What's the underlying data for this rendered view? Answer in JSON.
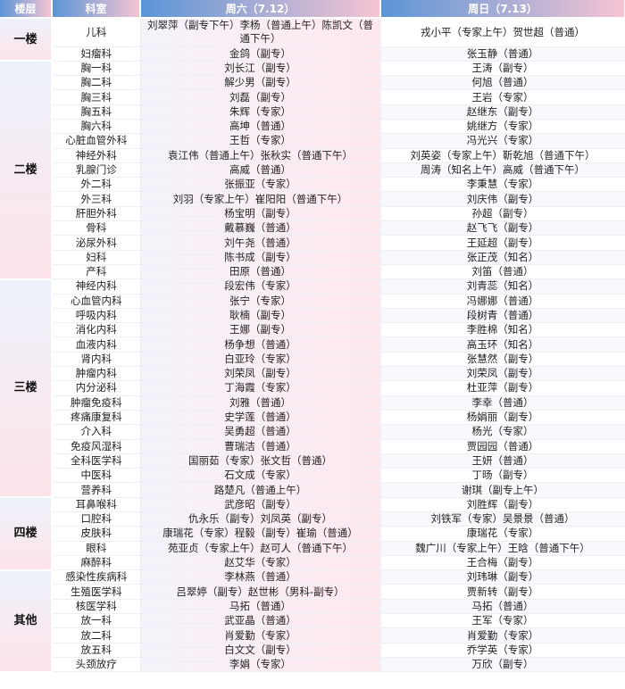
{
  "header": {
    "floor": "楼层",
    "dept": "科室",
    "sat": "周六（7.12）",
    "sun": "周日（7.13）"
  },
  "floors": [
    {
      "name": "一楼",
      "rows": [
        [
          "儿科",
          "刘翠萍（副专下午）李杨（普通上午）陈凯文（普通下午）",
          "戎小平（专家上午）贺世超（普通）"
        ],
        [
          "妇瘤科",
          "金鸽（副专）",
          "张玉静（普通）"
        ]
      ]
    },
    {
      "name": "二楼",
      "rows": [
        [
          "胸一科",
          "刘长江（副专）",
          "王涛（副专）"
        ],
        [
          "胸二科",
          "解少男（副专）",
          "何旭（普通）"
        ],
        [
          "胸三科",
          "刘磊（副专）",
          "王岩（专家）"
        ],
        [
          "胸五科",
          "朱辉（专家）",
          "赵继东（副专）"
        ],
        [
          "胸六科",
          "高坤（普通）",
          "姚继方（专家）"
        ],
        [
          "心脏血管外科",
          "王哲（专家）",
          "冯光兴（专家）"
        ],
        [
          "神经外科",
          "袁江伟（普通上午）张秋实（普通下午）",
          "刘英姿（专家上午）靳乾旭（普通下午）"
        ],
        [
          "乳腺门诊",
          "高威（普通）",
          "周涛（知名上午）高威（普通下午）"
        ],
        [
          "外二科",
          "张振亚（专家）",
          "李秉慧（专家）"
        ],
        [
          "外三科",
          "刘羽（专家上午）崔阳阳（普通下午）",
          "刘庆伟（副专）"
        ],
        [
          "肝胆外科",
          "杨宝明（副专）",
          "孙超（副专）"
        ],
        [
          "骨科",
          "戴慕巍（普通）",
          "赵飞飞（副专）"
        ],
        [
          "泌尿外科",
          "刘午尧（普通）",
          "王延超（副专）"
        ],
        [
          "妇科",
          "陈书成（副专）",
          "张正茂（知名）"
        ],
        [
          "产科",
          "田原（普通）",
          "刘笛（普通）"
        ]
      ]
    },
    {
      "name": "三楼",
      "rows": [
        [
          "神经内科",
          "段宏伟（专家）",
          "刘青蕊（知名）"
        ],
        [
          "心血管内科",
          "张宁（专家）",
          "冯娜娜（普通）"
        ],
        [
          "呼吸内科",
          "耿楠（副专）",
          "段树青（普通）"
        ],
        [
          "消化内科",
          "王娜（副专）",
          "李胜棉（知名）"
        ],
        [
          "血液内科",
          "杨争想（普通）",
          "高玉环（知名）"
        ],
        [
          "肾内科",
          "白亚玲（专家）",
          "张慧然（副专）"
        ],
        [
          "肿瘤内科",
          "刘荣凤（副专）",
          "刘荣凤（副专）"
        ],
        [
          "内分泌科",
          "丁海霞（专家）",
          "杜亚萍（副专）"
        ],
        [
          "肿瘤免疫科",
          "刘雅（普通）",
          "李幸（普通）"
        ],
        [
          "疼痛康复科",
          "史学莲（普通）",
          "杨娟丽（副专）"
        ],
        [
          "介入科",
          "吴勇超（普通）",
          "杨光（专家）"
        ],
        [
          "免疫风湿科",
          "曹瑞洁（普通）",
          "贾园园（普通）"
        ],
        [
          "全科医学科",
          "国丽茹（专家）张文哲（普通）",
          "王妍（普通）"
        ],
        [
          "中医科",
          "石文成（专家）",
          "丁旸（副专）"
        ],
        [
          "营养科",
          "路楚凡（普通上午）",
          "谢琪（副专上午）"
        ]
      ]
    },
    {
      "name": "四楼",
      "rows": [
        [
          "耳鼻喉科",
          "武彦昭（副专）",
          "刘胜辉（副专）"
        ],
        [
          "口腔科",
          "仇永乐（副专）刘凤英（副专）",
          "刘铁军（专家）吴景景（普通）"
        ],
        [
          "皮肤科",
          "康瑞花（专家）程毅（副专）崔瑜（普通）",
          "康瑞花（专家）"
        ],
        [
          "眼科",
          "苑亚贞（专家上午）赵可人（普通下午）",
          "魏广川（专家上午）王晗（普通下午）"
        ],
        [
          "麻醉科",
          "赵艾华（专家）",
          "王合梅（副专）"
        ]
      ]
    },
    {
      "name": "其他",
      "rows": [
        [
          "感染性疾病科",
          "李林燕（普通）",
          "刘玮琳（副专）"
        ],
        [
          "生殖医学科",
          "吕翠婷（副专）赵世彬（男科-副专）",
          "贾新转（副专）"
        ],
        [
          "核医学科",
          "马拓（普通）",
          "马拓（普通）"
        ],
        [
          "放一科",
          "武亚晶（普通）",
          "王军（专家）"
        ],
        [
          "放二科",
          "肖爱勤（专家）",
          "肖爱勤（专家）"
        ],
        [
          "放五科",
          "白文文（副专）",
          "乔学英（专家）"
        ],
        [
          "头颈放疗",
          "李娟（专家）",
          "万欣（副专）"
        ]
      ]
    }
  ]
}
